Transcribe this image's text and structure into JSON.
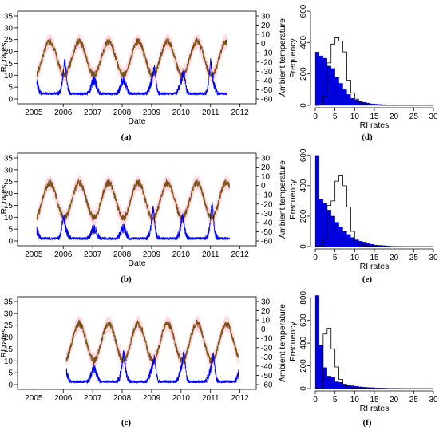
{
  "colors": {
    "temp_band": "#ffb6c1",
    "temp_line": "#8b4513",
    "temp_line2": "#3a7d2a",
    "rate_line": "#0000ff",
    "hist_fill": "#0000dd",
    "hist_outline": "#000000"
  },
  "chart_data": [
    {
      "panel": "(a)",
      "type": "line",
      "xlabel": "Date",
      "ylabel": "RI rates",
      "y2label": "Ambient temperature",
      "x_ticks": [
        "2005",
        "2006",
        "2007",
        "2008",
        "2009",
        "2010",
        "2011",
        "2012"
      ],
      "y_ticks": [
        0,
        5,
        10,
        15,
        20,
        25,
        30,
        35
      ],
      "y2_ticks": [
        30,
        20,
        10,
        0,
        -10,
        -20,
        -30,
        -40,
        -50,
        -60
      ],
      "ylim": [
        0,
        35
      ],
      "y2lim": [
        -60,
        30
      ],
      "xlim": [
        2005,
        2012
      ],
      "series": [
        {
          "kind": "temperature",
          "start": 2005.1,
          "end": 2011.55,
          "temp_mean": -16,
          "temp_amp": 18,
          "phase": 0.54
        },
        {
          "kind": "rates",
          "start": 2005.1,
          "end": 2011.55,
          "base": 2,
          "peak": 8,
          "extra_peaks": [
            [
              2006.05,
              8
            ],
            [
              2009.1,
              6
            ],
            [
              2010.1,
              4
            ],
            [
              2011.0,
              8
            ]
          ]
        }
      ]
    },
    {
      "panel": "(b)",
      "type": "line",
      "xlabel": "Date",
      "ylabel": "RI rates",
      "y2label": "Ambient temperature",
      "x_ticks": [
        "2005",
        "2006",
        "2007",
        "2008",
        "2009",
        "2010",
        "2011",
        "2012"
      ],
      "y_ticks": [
        0,
        5,
        10,
        15,
        20,
        25,
        30,
        35
      ],
      "y2_ticks": [
        30,
        20,
        10,
        0,
        -10,
        -20,
        -30,
        -40,
        -50,
        -60
      ],
      "ylim": [
        0,
        35
      ],
      "y2lim": [
        -60,
        30
      ],
      "xlim": [
        2005,
        2012
      ],
      "series": [
        {
          "kind": "temperature",
          "start": 2005.1,
          "end": 2011.65,
          "temp_mean": -16,
          "temp_amp": 19,
          "phase": 0.54
        },
        {
          "kind": "rates",
          "start": 2005.1,
          "end": 2011.65,
          "base": 0.8,
          "peak": 6,
          "extra_peaks": [
            [
              2006.0,
              5
            ],
            [
              2009.05,
              8
            ],
            [
              2010.05,
              5
            ],
            [
              2011.05,
              10
            ]
          ]
        }
      ]
    },
    {
      "panel": "(c)",
      "type": "line",
      "xlabel": "",
      "ylabel": "RI rates",
      "y2label": "Ambient temperature",
      "x_ticks": [
        "2005",
        "2006",
        "2007",
        "2008",
        "2009",
        "2010",
        "2011",
        "2012"
      ],
      "y_ticks": [
        0,
        5,
        10,
        15,
        20,
        25,
        30,
        35
      ],
      "y2_ticks": [
        30,
        20,
        10,
        0,
        -10,
        -20,
        -30,
        -40,
        -50,
        -60
      ],
      "ylim": [
        0,
        35
      ],
      "y2lim": [
        -60,
        30
      ],
      "xlim": [
        2005,
        2012
      ],
      "series": [
        {
          "kind": "temperature",
          "start": 2006.1,
          "end": 2011.95,
          "temp_mean": -14,
          "temp_amp": 20,
          "phase": 0.54
        },
        {
          "kind": "rates",
          "start": 2006.1,
          "end": 2011.95,
          "base": 1,
          "peak": 8,
          "extra_peaks": [
            [
              2008.05,
              6
            ],
            [
              2009.1,
              5
            ],
            [
              2010.1,
              7
            ],
            [
              2011.1,
              6
            ]
          ]
        }
      ]
    },
    {
      "panel": "(d)",
      "type": "bar",
      "xlabel": "RI rates",
      "ylabel": "Frequency",
      "x_ticks": [
        0,
        5,
        10,
        15,
        20,
        25,
        30
      ],
      "y_ticks": [
        0,
        200,
        400,
        600
      ],
      "xlim": [
        0,
        30
      ],
      "ylim": [
        0,
        600
      ],
      "bin_width": 1,
      "values": [
        340,
        315,
        300,
        250,
        235,
        180,
        140,
        100,
        70,
        45,
        35,
        25,
        20,
        15,
        10,
        8,
        6,
        5,
        4,
        3,
        2,
        2,
        1,
        1,
        1,
        0,
        0,
        0,
        0,
        0
      ],
      "outline": [
        0,
        5,
        60,
        270,
        390,
        430,
        410,
        340,
        160,
        80,
        40,
        20,
        10,
        5,
        3,
        2,
        1,
        0,
        0,
        0,
        0,
        0,
        0,
        0,
        0,
        0,
        0,
        0,
        0,
        0
      ]
    },
    {
      "panel": "(e)",
      "type": "bar",
      "xlabel": "RI rates",
      "ylabel": "Frequency",
      "x_ticks": [
        0,
        5,
        10,
        15,
        20,
        25,
        30
      ],
      "y_ticks": [
        0,
        200,
        400,
        600
      ],
      "xlim": [
        0,
        30
      ],
      "ylim": [
        0,
        620
      ],
      "bin_width": 1,
      "values": [
        600,
        310,
        285,
        240,
        200,
        160,
        130,
        100,
        80,
        60,
        45,
        35,
        30,
        20,
        15,
        10,
        8,
        6,
        4,
        2,
        1,
        1,
        0,
        0,
        0,
        0,
        0,
        0,
        0,
        0
      ],
      "outline": [
        0,
        5,
        50,
        270,
        300,
        430,
        470,
        400,
        260,
        100,
        40,
        15,
        5,
        2,
        1,
        0,
        0,
        0,
        0,
        0,
        0,
        0,
        0,
        0,
        0,
        0,
        0,
        0,
        0,
        0
      ]
    },
    {
      "panel": "(f)",
      "type": "bar",
      "xlabel": "RI rates",
      "ylabel": "Frequency",
      "x_ticks": [
        0,
        5,
        10,
        15,
        20,
        25,
        30
      ],
      "y_ticks": [
        0,
        200,
        400,
        600,
        800
      ],
      "xlim": [
        0,
        30
      ],
      "ylim": [
        0,
        830
      ],
      "bin_width": 1,
      "values": [
        820,
        380,
        185,
        110,
        100,
        60,
        55,
        40,
        30,
        25,
        20,
        15,
        12,
        10,
        8,
        6,
        5,
        4,
        3,
        2,
        1,
        1,
        0,
        0,
        0,
        0,
        0,
        0,
        0,
        0
      ],
      "outline": [
        0,
        0,
        480,
        530,
        350,
        190,
        80,
        30,
        10,
        5,
        2,
        0,
        0,
        0,
        0,
        0,
        0,
        0,
        0,
        0,
        0,
        0,
        0,
        0,
        0,
        0,
        0,
        0,
        0,
        0
      ]
    }
  ]
}
